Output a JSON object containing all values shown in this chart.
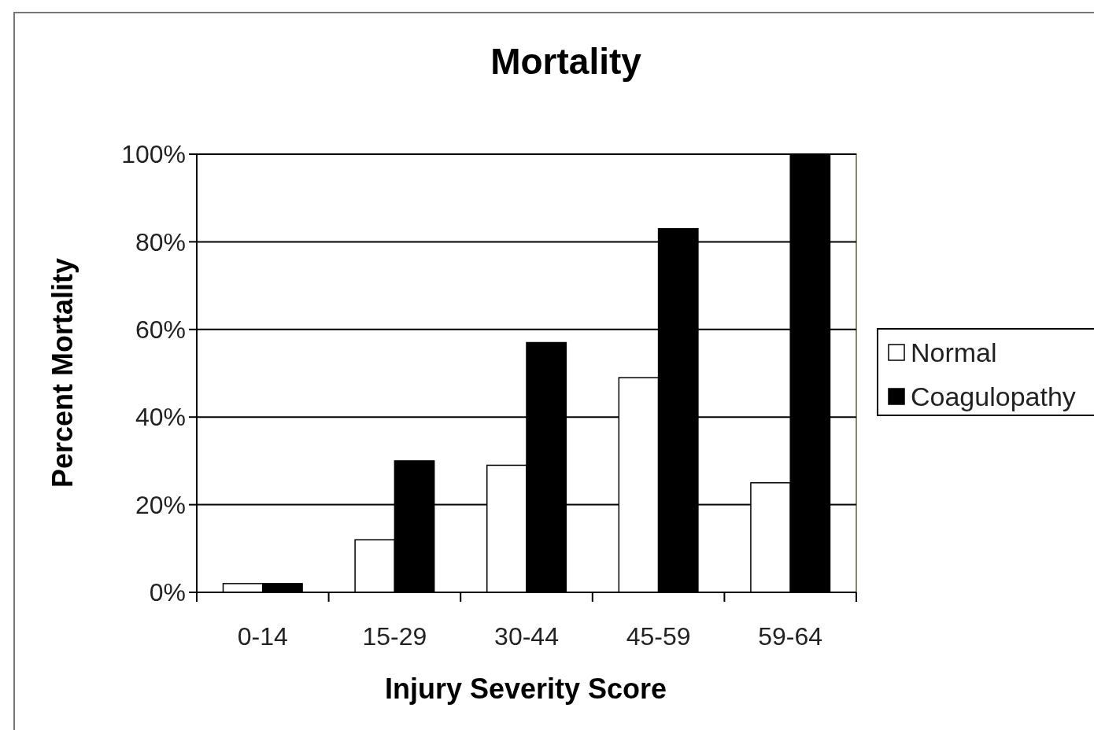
{
  "chart_data": {
    "type": "bar",
    "title": "Mortality",
    "xlabel": "Injury Severity Score",
    "ylabel": "Percent Mortality",
    "categories": [
      "0-14",
      "15-29",
      "30-44",
      "45-59",
      "59-64"
    ],
    "series": [
      {
        "name": "Normal",
        "color": "#ffffff",
        "values": [
          2,
          12,
          29,
          49,
          25
        ]
      },
      {
        "name": "Coagulopathy",
        "color": "#000000",
        "values": [
          2,
          30,
          57,
          83,
          100
        ]
      }
    ],
    "ylim": [
      0,
      100
    ],
    "yticks": [
      {
        "value": 0,
        "label": "0%"
      },
      {
        "value": 20,
        "label": "20%"
      },
      {
        "value": 40,
        "label": "40%"
      },
      {
        "value": 60,
        "label": "60%"
      },
      {
        "value": 80,
        "label": "80%"
      },
      {
        "value": 100,
        "label": "100%"
      }
    ],
    "grid": "y",
    "legend": "right"
  }
}
